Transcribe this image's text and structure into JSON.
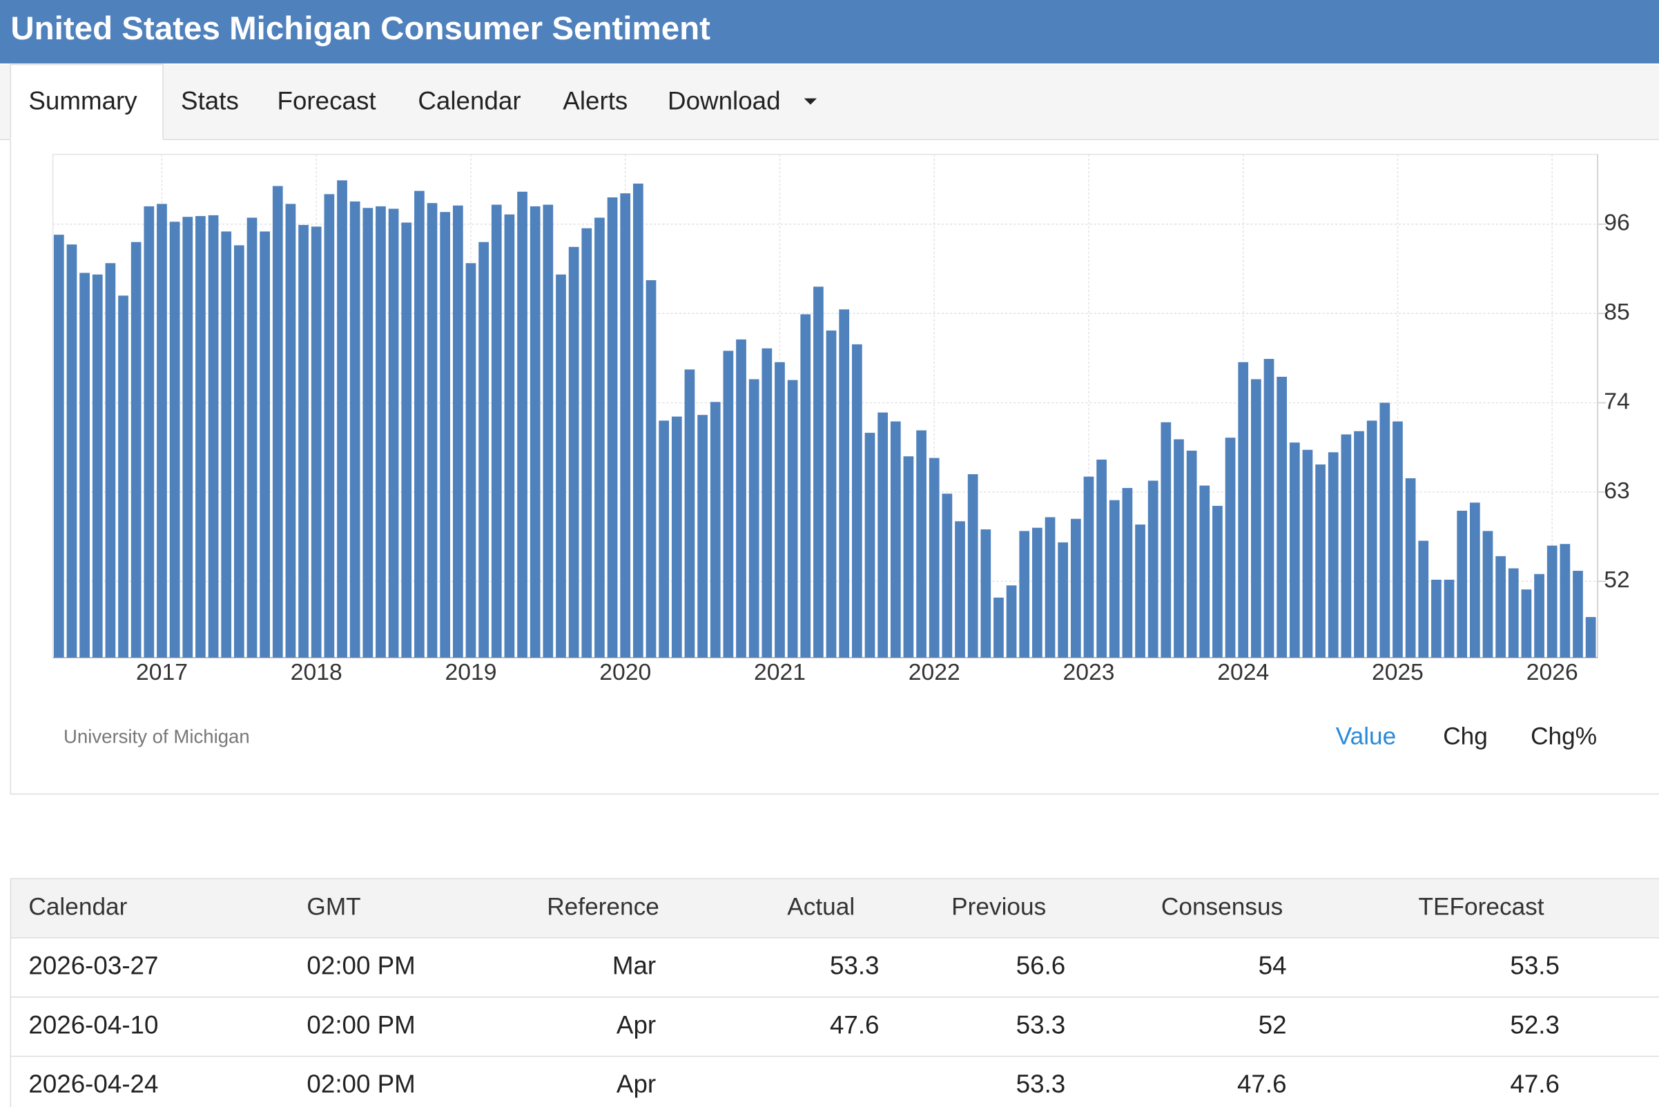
{
  "header": {
    "title": "United States Michigan Consumer Sentiment"
  },
  "tabs": [
    "Summary",
    "Stats",
    "Forecast",
    "Calendar",
    "Alerts",
    "Download"
  ],
  "chart_data": {
    "type": "bar",
    "color": "#4f81bd",
    "categories": [
      null,
      null,
      null,
      null,
      null,
      null,
      null,
      null,
      "2017",
      null,
      null,
      null,
      null,
      null,
      null,
      null,
      null,
      null,
      null,
      null,
      "2018",
      null,
      null,
      null,
      null,
      null,
      null,
      null,
      null,
      null,
      null,
      null,
      "2019",
      null,
      null,
      null,
      null,
      null,
      null,
      null,
      null,
      null,
      null,
      null,
      "2020",
      null,
      null,
      null,
      null,
      null,
      null,
      null,
      null,
      null,
      null,
      null,
      "2021",
      null,
      null,
      null,
      null,
      null,
      null,
      null,
      null,
      null,
      null,
      null,
      "2022",
      null,
      null,
      null,
      null,
      null,
      null,
      null,
      null,
      null,
      null,
      null,
      "2023",
      null,
      null,
      null,
      null,
      null,
      null,
      null,
      null,
      null,
      null,
      null,
      "2024",
      null,
      null,
      null,
      null,
      null,
      null,
      null,
      null,
      null,
      null,
      null,
      "2025",
      null,
      null,
      null,
      null,
      null,
      null,
      null,
      null,
      null,
      null,
      null,
      "2026",
      null,
      null,
      null
    ],
    "values": [
      94.7,
      93.5,
      90,
      89.8,
      91.2,
      87.2,
      93.8,
      98.2,
      98.5,
      96.3,
      96.9,
      97,
      97.1,
      95.1,
      93.4,
      96.8,
      95.1,
      100.7,
      98.5,
      95.9,
      95.7,
      99.7,
      101.4,
      98.8,
      98,
      98.2,
      97.9,
      96.2,
      100.1,
      98.6,
      97.5,
      98.3,
      91.2,
      93.8,
      98.4,
      97.2,
      100,
      98.2,
      98.4,
      89.8,
      93.2,
      95.5,
      96.8,
      99.3,
      99.8,
      101,
      89.1,
      71.8,
      72.3,
      78.1,
      72.5,
      74.1,
      80.4,
      81.8,
      76.9,
      80.7,
      79,
      76.8,
      84.9,
      88.3,
      82.9,
      85.5,
      81.2,
      70.3,
      72.8,
      71.7,
      67.4,
      70.6,
      67.2,
      62.8,
      59.4,
      65.2,
      58.4,
      50,
      51.5,
      58.2,
      58.6,
      59.9,
      56.8,
      59.7,
      64.9,
      67,
      62,
      63.5,
      59,
      64.4,
      71.6,
      69.5,
      68.1,
      63.8,
      61.3,
      69.7,
      79,
      76.9,
      79.4,
      77.2,
      69.1,
      68.2,
      66.4,
      67.9,
      70.1,
      70.5,
      71.8,
      74,
      71.7,
      64.7,
      57,
      52.2,
      52.2,
      60.7,
      61.7,
      58.2,
      55.1,
      53.6,
      51,
      52.9,
      56.4,
      56.6,
      53.3,
      47.6
    ],
    "ylim": [
      42.6,
      104.6
    ],
    "yticks": [
      52,
      63,
      74,
      85,
      96
    ],
    "grid": true,
    "source": "University of Michigan"
  },
  "chart_modes": [
    "Value",
    "Chg",
    "Chg%"
  ],
  "table": {
    "columns": [
      "Calendar",
      "GMT",
      "Reference",
      "Actual",
      "Previous",
      "Consensus",
      "TEForecast"
    ],
    "rows": [
      [
        "2026-03-27",
        "02:00 PM",
        "Mar",
        53.3,
        56.6,
        54,
        53.5
      ],
      [
        "2026-04-10",
        "02:00 PM",
        "Apr",
        47.6,
        53.3,
        52,
        52.3
      ],
      [
        "2026-04-24",
        "02:00 PM",
        "Apr",
        null,
        53.3,
        47.6,
        47.6
      ]
    ]
  }
}
